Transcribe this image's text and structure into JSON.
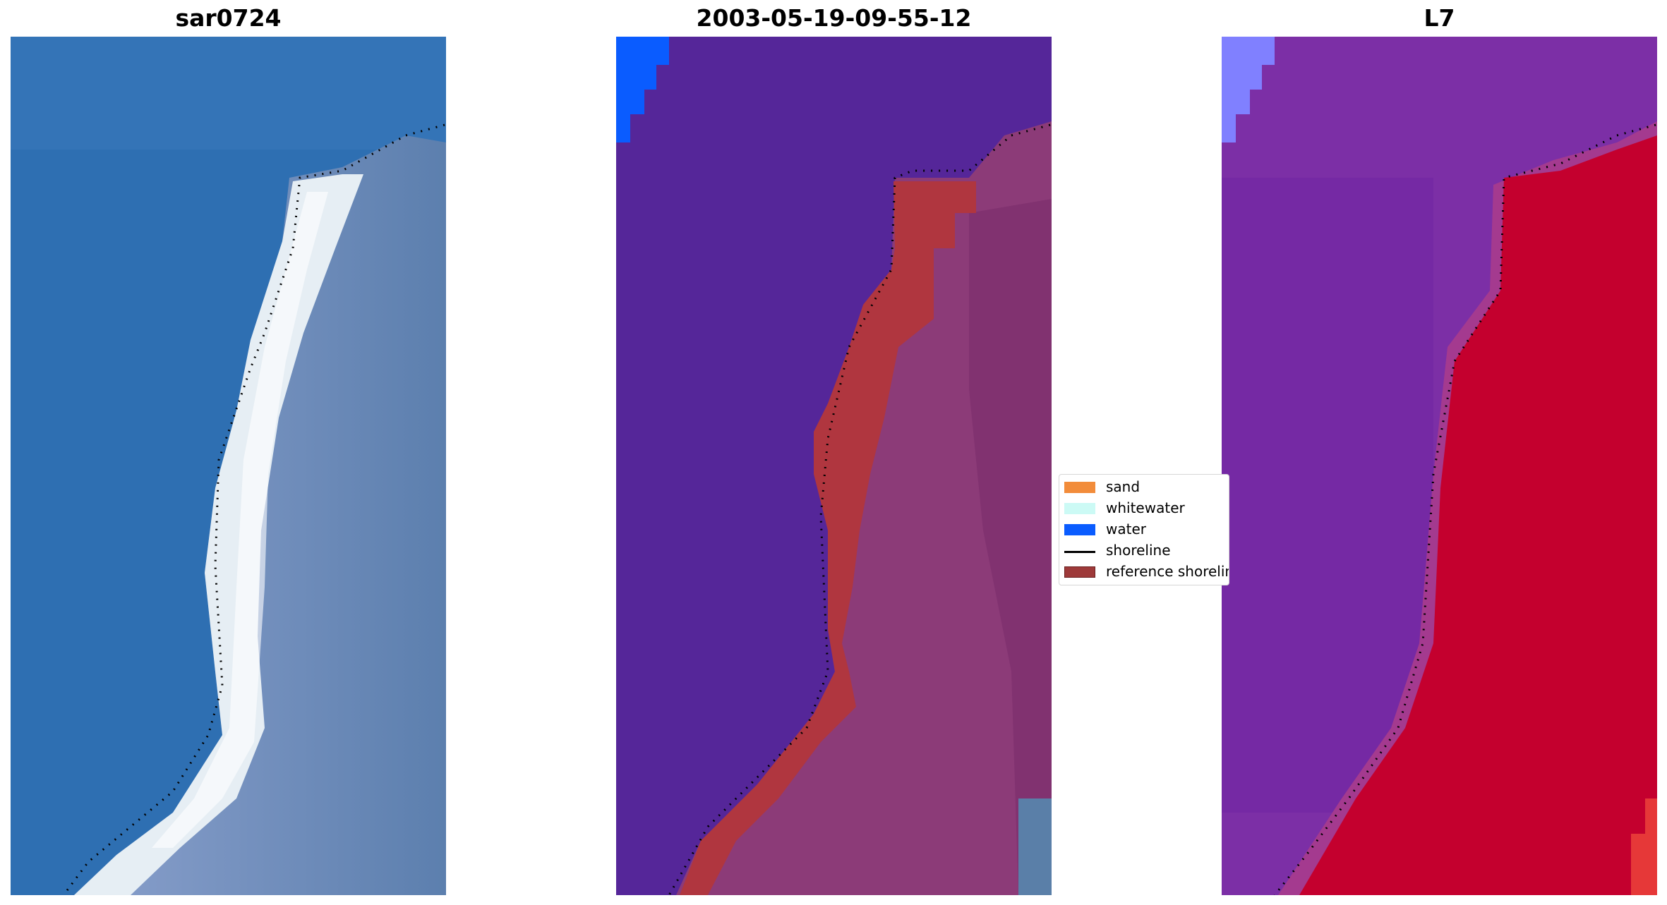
{
  "titles": {
    "panel1": "sar0724",
    "panel2": "2003-05-19-09-55-12",
    "panel3": "L7"
  },
  "legend": {
    "items": [
      {
        "label": "sand",
        "color": "#f28c3a",
        "type": "patch"
      },
      {
        "label": "whitewater",
        "color": "#ccfaf5",
        "type": "patch"
      },
      {
        "label": "water",
        "color": "#0a5cff",
        "type": "patch"
      },
      {
        "label": "shoreline",
        "color": "#000000",
        "type": "line"
      },
      {
        "label": "reference shoreline buffer",
        "color": "#9e3a3a",
        "type": "patch"
      }
    ]
  },
  "colors": {
    "rgb_water": "#2f74b5",
    "rgb_land": "#7f93c4",
    "rgb_beach": "#e9f1f6",
    "class_water_overlay": "#552699",
    "class_land": "#8c3b78",
    "buffer": "#b0363f",
    "water_class": "#0a5cff",
    "ndwi_water": "#7c2fa6",
    "ndwi_land": "#c4002e"
  }
}
